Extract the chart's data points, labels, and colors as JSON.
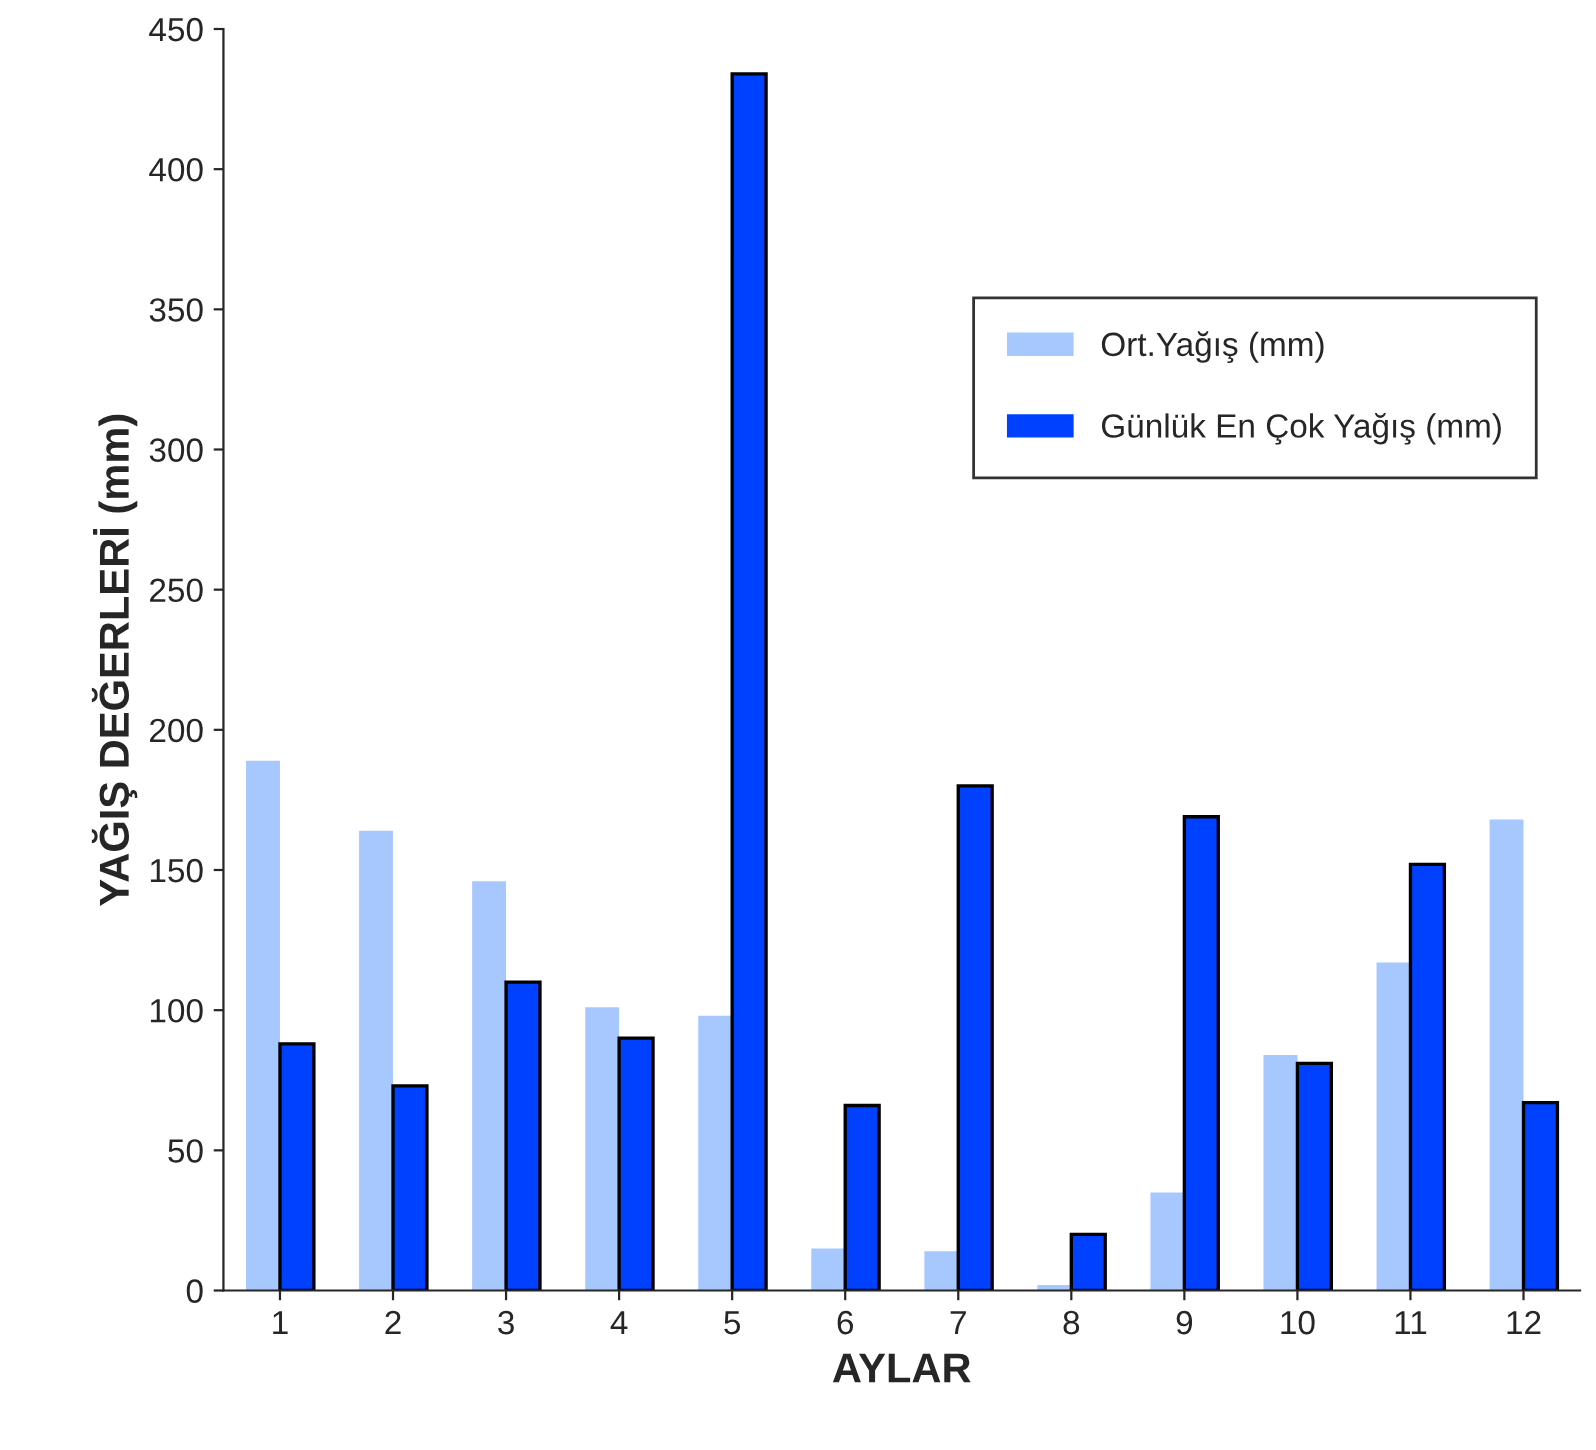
{
  "chart_data": {
    "type": "bar",
    "xlabel": "AYLAR",
    "ylabel": "YAĞIŞ DEĞERLERİ (mm)",
    "categories": [
      "1",
      "2",
      "3",
      "4",
      "5",
      "6",
      "7",
      "8",
      "9",
      "10",
      "11",
      "12"
    ],
    "series": [
      {
        "name": "Ort.Yağış (mm)",
        "color": "#a6c8ff",
        "values": [
          189,
          164,
          146,
          101,
          98,
          15,
          14,
          2,
          35,
          84,
          117,
          168
        ]
      },
      {
        "name": "Günlük En Çok Yağış (mm)",
        "color": "#0040ff",
        "values": [
          88,
          73,
          110,
          90,
          434,
          66,
          180,
          20,
          169,
          81,
          152,
          67
        ]
      }
    ],
    "ylim": [
      0,
      450
    ],
    "yticks": [
      0,
      50,
      100,
      150,
      200,
      250,
      300,
      350,
      400,
      450
    ],
    "grid": false,
    "legend": "top right"
  }
}
